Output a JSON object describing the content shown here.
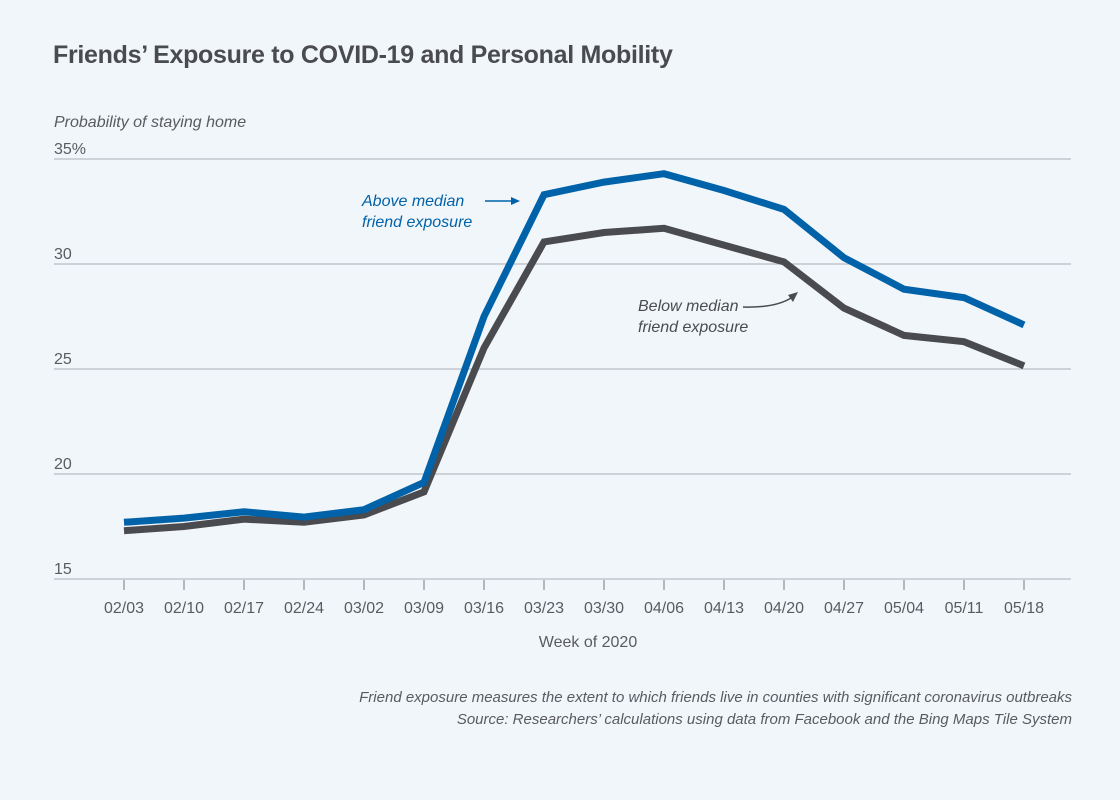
{
  "chart_data": {
    "type": "line",
    "title": "Friends’ Exposure to COVID-19 and Personal Mobility",
    "ylabel": "Probability of staying home",
    "xlabel": "Week of 2020",
    "ylim": [
      15,
      35
    ],
    "yticks": [
      15,
      20,
      25,
      30,
      35
    ],
    "ytick_labels": [
      "15",
      "20",
      "25",
      "30",
      "35%"
    ],
    "grid": true,
    "categories": [
      "02/03",
      "02/10",
      "02/17",
      "02/24",
      "03/02",
      "03/09",
      "03/16",
      "03/23",
      "03/30",
      "04/06",
      "04/13",
      "04/20",
      "04/27",
      "05/04",
      "05/11",
      "05/18"
    ],
    "series": [
      {
        "name": "Above median friend exposure",
        "color": "#0062a8",
        "values": [
          17.7,
          17.9,
          18.2,
          17.95,
          18.3,
          19.6,
          27.5,
          33.3,
          33.9,
          34.3,
          33.5,
          32.6,
          30.3,
          28.8,
          28.4,
          27.1
        ]
      },
      {
        "name": "Below median friend exposure",
        "color": "#4a4b4f",
        "values": [
          17.3,
          17.5,
          17.85,
          17.7,
          18.05,
          19.15,
          26.0,
          31.05,
          31.5,
          31.7,
          30.9,
          30.1,
          27.9,
          26.6,
          26.3,
          25.15
        ]
      }
    ],
    "annotations": [
      {
        "series": 0,
        "lines": [
          "Above median",
          "friend exposure"
        ]
      },
      {
        "series": 1,
        "lines": [
          "Below median",
          "friend exposure"
        ]
      }
    ],
    "notes": [
      "Friend exposure measures the extent to which friends live in counties with significant coronavirus outbreaks",
      "Source: Researchers’ calculations using data from Facebook and the Bing Maps Tile System"
    ]
  }
}
